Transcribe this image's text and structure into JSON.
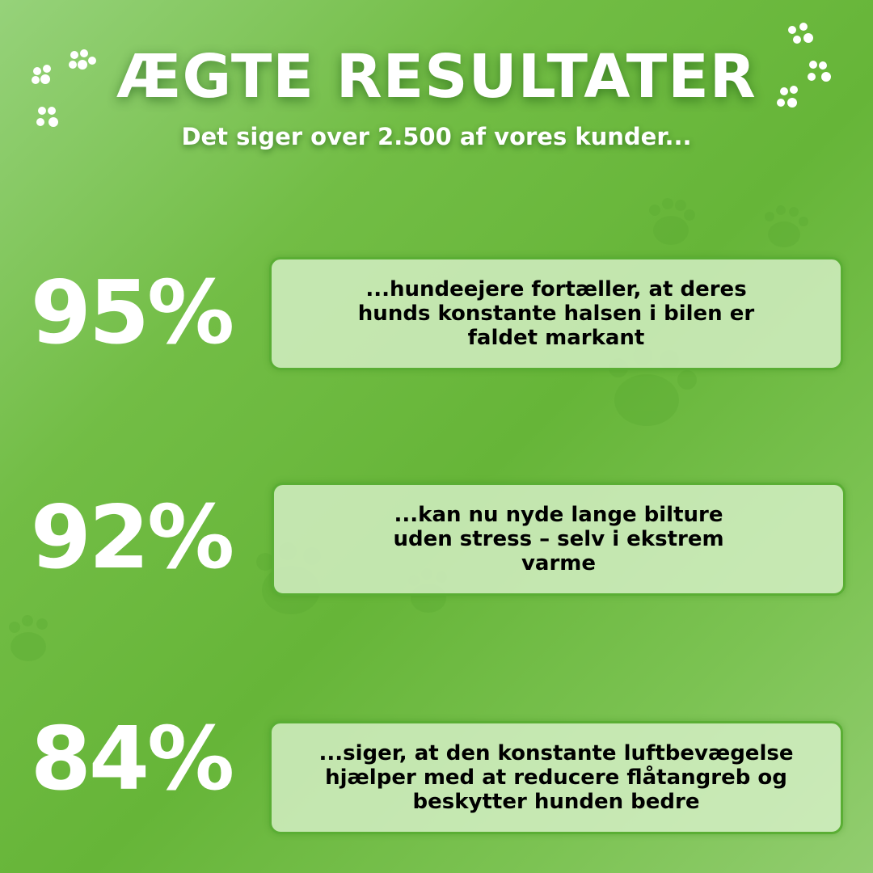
{
  "header": {
    "title": "ÆGTE RESULTATER",
    "subtitle": "Det siger over 2.500 af vores kunder..."
  },
  "stats": [
    {
      "percent": "95%",
      "text": "...hundeejere fortæller, at deres hunds konstante halsen i bilen er faldet markant"
    },
    {
      "percent": "92%",
      "text": "...kan nu nyde lange bilture uden stress – selv i ekstrem varme"
    },
    {
      "percent": "84%",
      "text": "...siger, at den konstante luftbevægelse hjælper med at reducere flåtangreb og beskytter hunden bedre"
    }
  ],
  "colors": {
    "background": "#6bb83c",
    "box_border": "#5aae34",
    "box_fill": "#d7f0c8",
    "text": "#000000",
    "accent_text": "#ffffff"
  },
  "decorations": [
    "paw-print-icon"
  ]
}
